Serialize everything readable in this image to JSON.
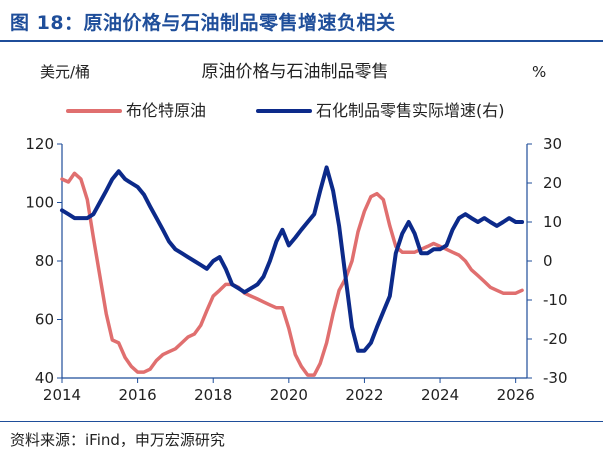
{
  "figure": {
    "title": "图 18：原油价格与石油制品零售增速负相关",
    "source": "资料来源：iFind，申万宏源研究"
  },
  "colors": {
    "left_series": "#e06f6f",
    "right_series": "#0c2a8a",
    "axis": "#1f4e9a",
    "text": "#222222"
  },
  "chart_data": {
    "type": "line",
    "title": "原油价格与石油制品零售",
    "left_unit": "美元/桶",
    "right_unit": "%",
    "x_ticks": [
      "2014",
      "2016",
      "2018",
      "2020",
      "2022",
      "2024",
      "2026"
    ],
    "xlim": [
      2014,
      2026.3
    ],
    "left_ylim": [
      40,
      120
    ],
    "left_yticks": [
      "120",
      "100",
      "80",
      "60",
      "40"
    ],
    "right_ylim": [
      -30,
      30
    ],
    "right_yticks": [
      "30",
      "20",
      "10",
      "0",
      "-10",
      "-20",
      "-30"
    ],
    "legend_position": "top",
    "series": [
      {
        "name": "布伦特原油",
        "axis": "left",
        "points": [
          [
            2014.0,
            108
          ],
          [
            2014.17,
            107
          ],
          [
            2014.33,
            110
          ],
          [
            2014.5,
            108
          ],
          [
            2014.67,
            101
          ],
          [
            2014.83,
            88
          ],
          [
            2015.0,
            75
          ],
          [
            2015.17,
            62
          ],
          [
            2015.33,
            53
          ],
          [
            2015.5,
            52
          ],
          [
            2015.67,
            47
          ],
          [
            2015.83,
            44
          ],
          [
            2016.0,
            42
          ],
          [
            2016.17,
            42
          ],
          [
            2016.33,
            43
          ],
          [
            2016.5,
            46
          ],
          [
            2016.67,
            48
          ],
          [
            2016.83,
            49
          ],
          [
            2017.0,
            50
          ],
          [
            2017.17,
            52
          ],
          [
            2017.33,
            54
          ],
          [
            2017.5,
            55
          ],
          [
            2017.67,
            58
          ],
          [
            2017.83,
            63
          ],
          [
            2018.0,
            68
          ],
          [
            2018.17,
            70
          ],
          [
            2018.33,
            72
          ],
          [
            2018.5,
            72
          ],
          [
            2018.67,
            71
          ],
          [
            2018.83,
            69
          ],
          [
            2019.0,
            68
          ],
          [
            2019.17,
            67
          ],
          [
            2019.33,
            66
          ],
          [
            2019.5,
            65
          ],
          [
            2019.67,
            64
          ],
          [
            2019.83,
            64
          ],
          [
            2020.0,
            57
          ],
          [
            2020.17,
            48
          ],
          [
            2020.33,
            44
          ],
          [
            2020.5,
            41
          ],
          [
            2020.67,
            41
          ],
          [
            2020.83,
            45
          ],
          [
            2021.0,
            52
          ],
          [
            2021.17,
            62
          ],
          [
            2021.33,
            70
          ],
          [
            2021.5,
            74
          ],
          [
            2021.67,
            80
          ],
          [
            2021.83,
            90
          ],
          [
            2022.0,
            97
          ],
          [
            2022.17,
            102
          ],
          [
            2022.33,
            103
          ],
          [
            2022.5,
            101
          ],
          [
            2022.67,
            92
          ],
          [
            2022.83,
            85
          ],
          [
            2023.0,
            83
          ],
          [
            2023.17,
            83
          ],
          [
            2023.33,
            83
          ],
          [
            2023.5,
            84
          ],
          [
            2023.67,
            85
          ],
          [
            2023.83,
            86
          ],
          [
            2024.0,
            85
          ],
          [
            2024.17,
            84
          ],
          [
            2024.33,
            83
          ],
          [
            2024.5,
            82
          ],
          [
            2024.67,
            80
          ],
          [
            2024.83,
            77
          ],
          [
            2025.0,
            75
          ],
          [
            2025.17,
            73
          ],
          [
            2025.33,
            71
          ],
          [
            2025.5,
            70
          ],
          [
            2025.67,
            69
          ],
          [
            2025.83,
            69
          ],
          [
            2026.0,
            69
          ],
          [
            2026.17,
            70
          ]
        ]
      },
      {
        "name": "石化制品零售实际增速(右)",
        "axis": "right",
        "points": [
          [
            2014.0,
            13
          ],
          [
            2014.17,
            12
          ],
          [
            2014.33,
            11
          ],
          [
            2014.5,
            11
          ],
          [
            2014.67,
            11
          ],
          [
            2014.83,
            12
          ],
          [
            2015.0,
            15
          ],
          [
            2015.17,
            18
          ],
          [
            2015.33,
            21
          ],
          [
            2015.5,
            23
          ],
          [
            2015.67,
            21
          ],
          [
            2015.83,
            20
          ],
          [
            2016.0,
            19
          ],
          [
            2016.17,
            17
          ],
          [
            2016.33,
            14
          ],
          [
            2016.5,
            11
          ],
          [
            2016.67,
            8
          ],
          [
            2016.83,
            5
          ],
          [
            2017.0,
            3
          ],
          [
            2017.17,
            2
          ],
          [
            2017.33,
            1
          ],
          [
            2017.5,
            0
          ],
          [
            2017.67,
            -1
          ],
          [
            2017.83,
            -2
          ],
          [
            2018.0,
            0
          ],
          [
            2018.17,
            1
          ],
          [
            2018.33,
            -2
          ],
          [
            2018.5,
            -6
          ],
          [
            2018.67,
            -7
          ],
          [
            2018.83,
            -8
          ],
          [
            2019.0,
            -7
          ],
          [
            2019.17,
            -6
          ],
          [
            2019.33,
            -4
          ],
          [
            2019.5,
            0
          ],
          [
            2019.67,
            5
          ],
          [
            2019.83,
            8
          ],
          [
            2020.0,
            4
          ],
          [
            2020.17,
            6
          ],
          [
            2020.33,
            8
          ],
          [
            2020.5,
            10
          ],
          [
            2020.67,
            12
          ],
          [
            2020.83,
            18
          ],
          [
            2021.0,
            24
          ],
          [
            2021.17,
            18
          ],
          [
            2021.33,
            9
          ],
          [
            2021.5,
            -4
          ],
          [
            2021.67,
            -17
          ],
          [
            2021.83,
            -23
          ],
          [
            2022.0,
            -23
          ],
          [
            2022.17,
            -21
          ],
          [
            2022.33,
            -17
          ],
          [
            2022.5,
            -13
          ],
          [
            2022.67,
            -9
          ],
          [
            2022.83,
            2
          ],
          [
            2023.0,
            7
          ],
          [
            2023.17,
            10
          ],
          [
            2023.33,
            7
          ],
          [
            2023.5,
            2
          ],
          [
            2023.67,
            2
          ],
          [
            2023.83,
            3
          ],
          [
            2024.0,
            3
          ],
          [
            2024.17,
            4
          ],
          [
            2024.33,
            8
          ],
          [
            2024.5,
            11
          ],
          [
            2024.67,
            12
          ],
          [
            2024.83,
            11
          ],
          [
            2025.0,
            10
          ],
          [
            2025.17,
            11
          ],
          [
            2025.33,
            10
          ],
          [
            2025.5,
            9
          ],
          [
            2025.67,
            10
          ],
          [
            2025.83,
            11
          ],
          [
            2026.0,
            10
          ],
          [
            2026.17,
            10
          ]
        ]
      }
    ]
  }
}
